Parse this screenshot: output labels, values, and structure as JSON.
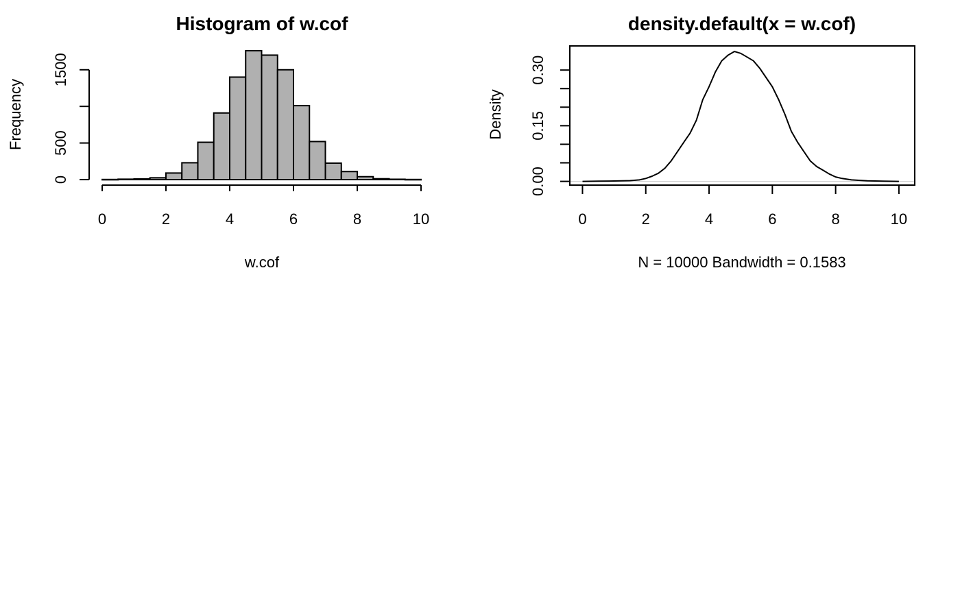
{
  "background_color": "#ffffff",
  "chart_data": [
    {
      "type": "bar",
      "title": "Histogram of w.cof",
      "xlabel": "w.cof",
      "ylabel": "Frequency",
      "bar_color": "#b0b0b0",
      "border_color": "#000000",
      "bin_edges": [
        0,
        0.5,
        1,
        1.5,
        2,
        2.5,
        3,
        3.5,
        4,
        4.5,
        5,
        5.5,
        6,
        6.5,
        7,
        7.5,
        8,
        8.5,
        9,
        9.5,
        10
      ],
      "values": [
        2,
        6,
        10,
        25,
        90,
        230,
        510,
        910,
        1400,
        1760,
        1700,
        1500,
        1010,
        520,
        225,
        110,
        40,
        12,
        5,
        2
      ],
      "xlim": [
        0,
        10
      ],
      "ylim": [
        0,
        1760
      ],
      "x_ticks": [
        0,
        2,
        4,
        6,
        8,
        10
      ],
      "x_tick_labels": [
        "0",
        "2",
        "4",
        "6",
        "8",
        "10"
      ],
      "y_ticks": [
        0,
        500,
        1000,
        1500
      ],
      "y_tick_labels": [
        "0",
        "500",
        "",
        "1500"
      ],
      "grid": false
    },
    {
      "type": "line",
      "title": "density.default(x = w.cof)",
      "xlabel": "N = 10000   Bandwidth = 0.1583",
      "ylabel": "Density",
      "line_color": "#000000",
      "zero_line_color": "#cccccc",
      "x": [
        0,
        0.5,
        1,
        1.5,
        1.8,
        2,
        2.2,
        2.4,
        2.6,
        2.8,
        3,
        3.2,
        3.4,
        3.6,
        3.8,
        4,
        4.2,
        4.4,
        4.6,
        4.8,
        5,
        5.2,
        5.4,
        5.6,
        5.8,
        6,
        6.2,
        6.4,
        6.6,
        6.8,
        7,
        7.2,
        7.4,
        7.6,
        7.8,
        8,
        8.2,
        8.5,
        9,
        9.5,
        10
      ],
      "y": [
        0.0,
        0.0005,
        0.001,
        0.002,
        0.004,
        0.008,
        0.014,
        0.022,
        0.035,
        0.055,
        0.08,
        0.105,
        0.13,
        0.165,
        0.22,
        0.255,
        0.295,
        0.325,
        0.34,
        0.35,
        0.345,
        0.335,
        0.325,
        0.305,
        0.28,
        0.255,
        0.22,
        0.18,
        0.135,
        0.105,
        0.08,
        0.055,
        0.04,
        0.03,
        0.02,
        0.012,
        0.008,
        0.004,
        0.0015,
        0.0005,
        0.0
      ],
      "xlim": [
        -0.4,
        10.5
      ],
      "ylim": [
        -0.01,
        0.365
      ],
      "x_ticks": [
        0,
        2,
        4,
        6,
        8,
        10
      ],
      "x_tick_labels": [
        "0",
        "2",
        "4",
        "6",
        "8",
        "10"
      ],
      "y_ticks": [
        0.0,
        0.05,
        0.1,
        0.15,
        0.2,
        0.25,
        0.3
      ],
      "y_tick_labels": [
        "0.00",
        "",
        "",
        "0.15",
        "",
        "",
        "0.30"
      ],
      "grid": false
    }
  ]
}
